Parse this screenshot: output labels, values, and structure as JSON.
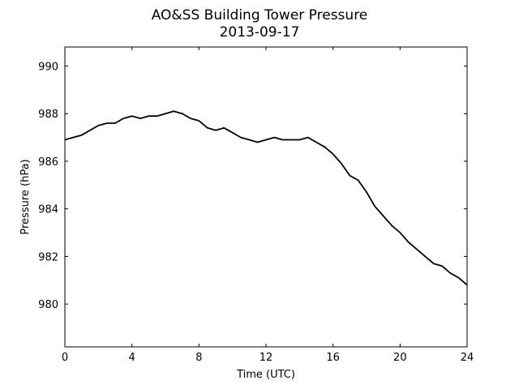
{
  "chart_data": {
    "type": "line",
    "title": "AO&SS Building Tower Pressure",
    "subtitle": "2013-09-17",
    "xlabel": "Time (UTC)",
    "ylabel": "Pressure (hPa)",
    "xlim": [
      0,
      24
    ],
    "ylim": [
      978.2,
      990.8
    ],
    "xticks": [
      0,
      4,
      8,
      12,
      16,
      20,
      24
    ],
    "yticks": [
      980,
      982,
      984,
      986,
      988,
      990
    ],
    "grid": false,
    "line_color": "#000000",
    "series": [
      {
        "x": [
          0,
          0.5,
          1,
          1.5,
          2,
          2.5,
          3,
          3.5,
          4,
          4.5,
          5,
          5.5,
          6,
          6.5,
          7,
          7.5,
          8,
          8.5,
          9,
          9.5,
          10,
          10.5,
          11,
          11.5,
          12,
          12.5,
          13,
          13.5,
          14,
          14.5,
          15,
          15.5,
          16,
          16.5,
          17,
          17.5,
          18,
          18.5,
          19,
          19.5,
          20,
          20.5,
          21,
          21.5,
          22,
          22.5,
          23,
          23.5,
          24
        ],
        "y": [
          986.9,
          987.0,
          987.1,
          987.3,
          987.5,
          987.6,
          987.6,
          987.8,
          987.9,
          987.8,
          987.9,
          987.9,
          988.0,
          988.1,
          988.0,
          987.8,
          987.7,
          987.4,
          987.3,
          987.4,
          987.2,
          987.0,
          986.9,
          986.8,
          986.9,
          987.0,
          986.9,
          986.9,
          986.9,
          987.0,
          986.8,
          986.6,
          986.3,
          985.9,
          985.4,
          985.2,
          984.7,
          984.1,
          983.7,
          983.3,
          983.0,
          982.6,
          982.3,
          982.0,
          981.7,
          981.6,
          981.3,
          981.1,
          980.8
        ]
      }
    ]
  }
}
